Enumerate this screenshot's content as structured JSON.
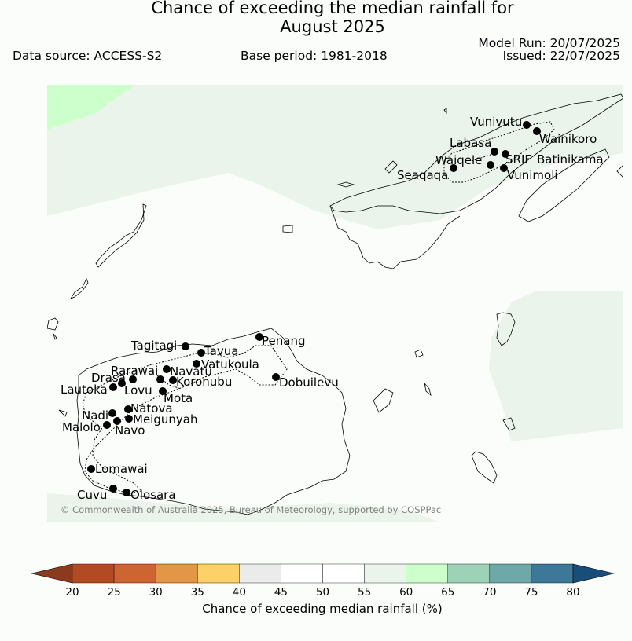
{
  "title_line1": "Chance of exceeding the median rainfall for",
  "title_line2": "August 2025",
  "data_source": "Data source: ACCESS-S2",
  "base_period": "Base period: 1981-2018",
  "model_run": "Model Run: 20/07/2025",
  "issued": "Issued: 22/07/2025",
  "copyright": "© Commonwealth of Australia 2025, Bureau of Meteorology, supported by COSPPac",
  "towns": {
    "vunivutu": "Vunivutu",
    "wainikoro": "Wainikoro",
    "labasa": "Labasa",
    "waiqele": "Waiqele",
    "srif": "SRIF",
    "batinikama": "Batinikama",
    "seaqaqa": "Seaqaqa",
    "vunimoli": "Vunimoli",
    "tagitagi": "Tagitagi",
    "tavua": "Tavua",
    "penang": "Penang",
    "vatukoula": "Vatukoula",
    "rarawai": "Rarawai",
    "navatu": "Navatu",
    "drasa": "Drasa",
    "koronubu": "Koronubu",
    "dobuilevu": "Dobuilevu",
    "lautoka": "Lautoka",
    "lovu": "Lovu",
    "mota": "Mota",
    "natova": "Natova",
    "nadi": "Nadi",
    "meigunyah": "Meigunyah",
    "malolo": "Malolo",
    "navo": "Navo",
    "lomawai": "Lomawai",
    "cuvu": "Cuvu",
    "olosara": "Olosara"
  },
  "colorbar": {
    "label": "Chance of exceeding median rainfall (%)",
    "ticks": [
      "20",
      "25",
      "30",
      "35",
      "40",
      "45",
      "50",
      "55",
      "60",
      "65",
      "70",
      "75",
      "80"
    ],
    "low_extend_color": "#8c3a1e",
    "high_extend_color": "#1a4e7a",
    "colors": [
      "#b24b24",
      "#cd6530",
      "#e39645",
      "#fdd06a",
      "#ebebeb",
      "#ffffff",
      "#ffffff",
      "#eaf4ea",
      "#ccffcc",
      "#9ed2b8",
      "#6fa8a8",
      "#3e7898"
    ]
  },
  "map_colors": {
    "background": "#fbfdfb",
    "band_55_60": "#eaf4ea",
    "band_60_65": "#ccffcc"
  }
}
